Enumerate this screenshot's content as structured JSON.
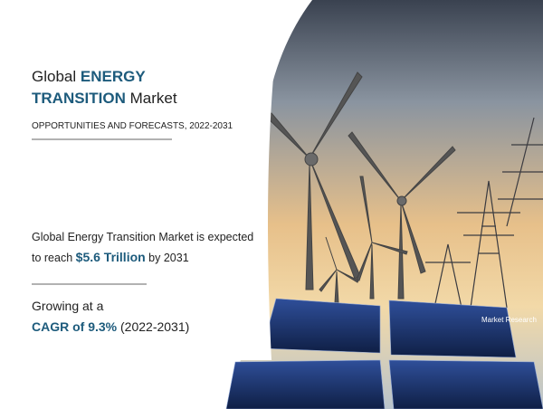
{
  "header": {
    "title_line1_prefix": "Global",
    "title_line1_highlight": "ENERGY",
    "title_line2_highlight": "TRANSITION",
    "title_line2_suffix": "Market",
    "subtitle": "OPPORTUNITIES AND FORECASTS, 2022-2031"
  },
  "body": {
    "statement_line1": "Global Energy Transition Market is expected",
    "statement_line2_prefix": "to reach",
    "statement_value": "$5.6 Trillion",
    "statement_suffix": "by 2031",
    "growth_prefix": "Growing at a",
    "growth_value": "CAGR of 9.3%",
    "growth_period": "(2022-2031)"
  },
  "logo": {
    "text": "Market Research"
  }
}
